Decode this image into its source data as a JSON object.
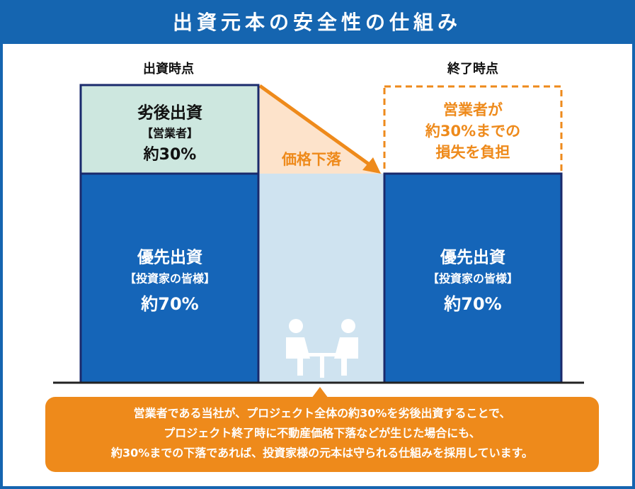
{
  "header": {
    "title": "出資元本の安全性の仕組み"
  },
  "left": {
    "label": "出資時点",
    "subordinate": {
      "title": "劣後出資",
      "holder": "【営業者】",
      "share": "約30%"
    },
    "senior": {
      "title": "優先出資",
      "holder": "【投資家の皆様】",
      "share": "約70%"
    }
  },
  "middle": {
    "label": "価格下落"
  },
  "right": {
    "label": "終了時点",
    "loss": {
      "lines": [
        "営業者が",
        "約30%までの",
        "損失を負担"
      ]
    },
    "senior": {
      "title": "優先出資",
      "holder": "【投資家の皆様】",
      "share": "約70%"
    }
  },
  "note": {
    "lines": [
      "営業者である当社が、プロジェクト全体の約30%を劣後出資することで、",
      "プロジェクト終了時に不動産価格下落などが生じた場合にも、",
      "約30%までの下落であれば、投資家様の元本は守られる仕組みを採用しています。"
    ]
  }
}
